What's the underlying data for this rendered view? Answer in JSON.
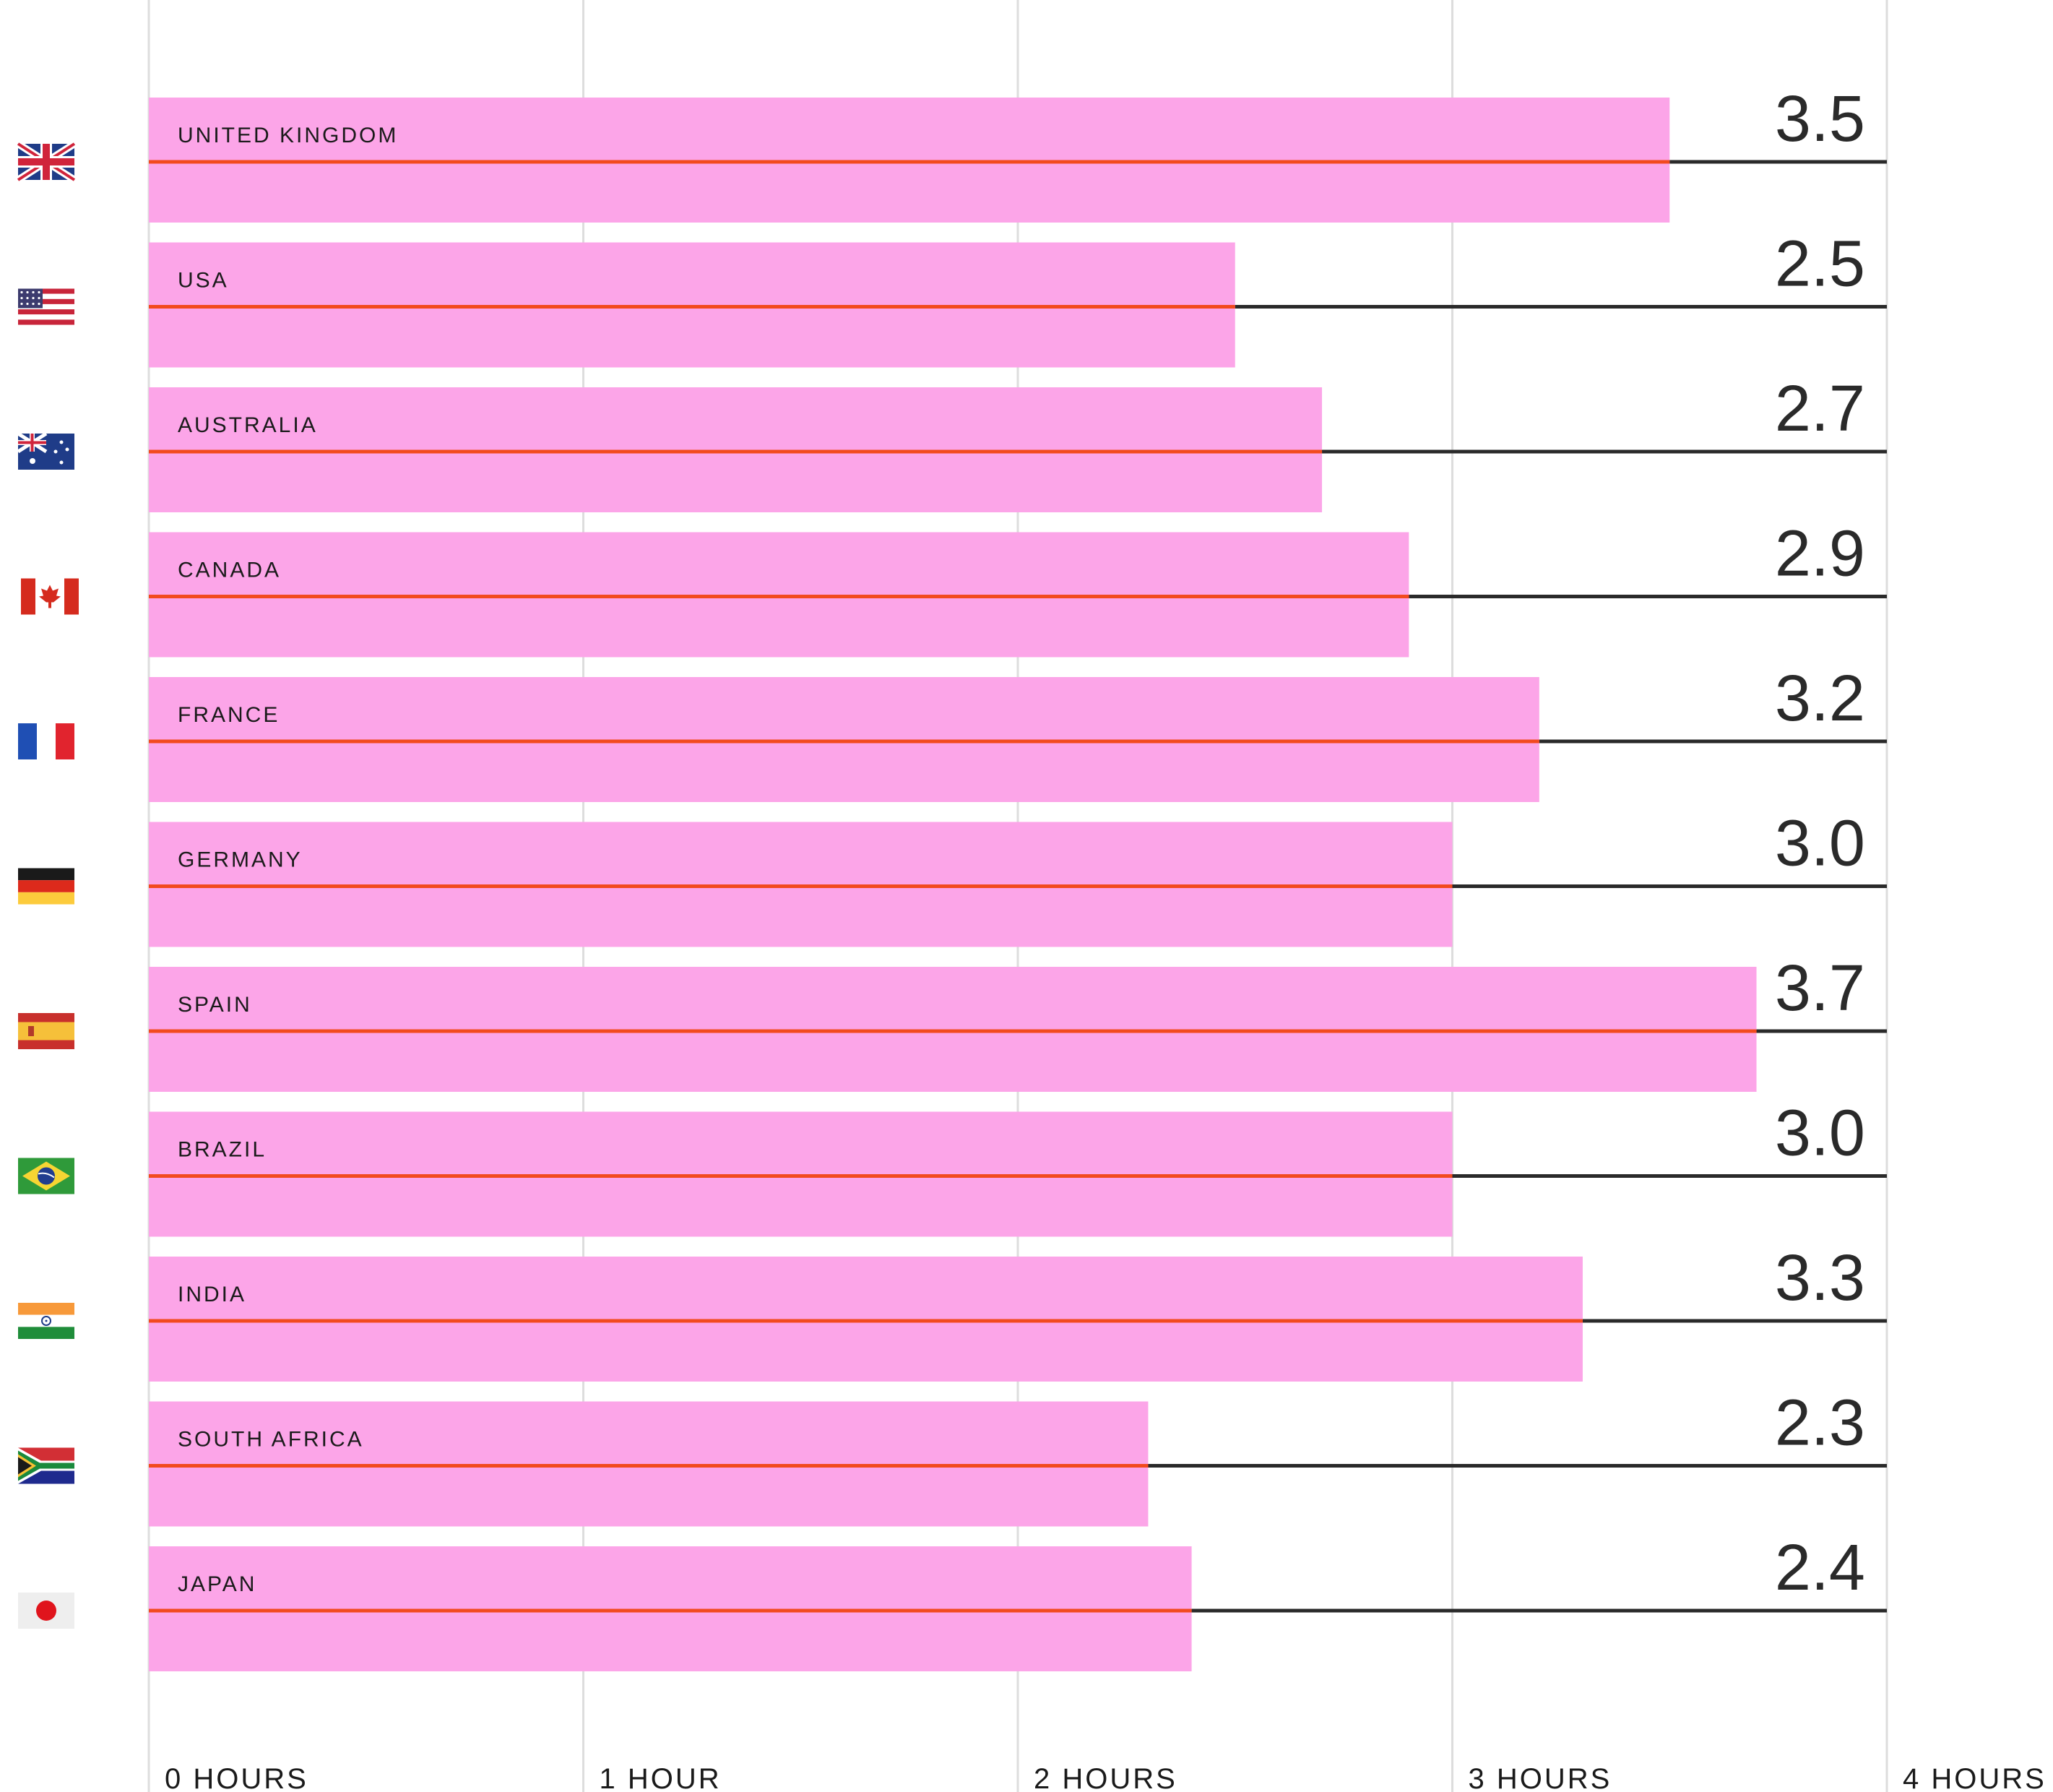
{
  "chart_data": {
    "type": "bar",
    "orientation": "horizontal",
    "categories": [
      "UNITED KINGDOM",
      "USA",
      "AUSTRALIA",
      "CANADA",
      "FRANCE",
      "GERMANY",
      "SPAIN",
      "BRAZIL",
      "INDIA",
      "SOUTH AFRICA",
      "JAPAN"
    ],
    "values": [
      3.5,
      2.5,
      2.7,
      2.9,
      3.2,
      3.0,
      3.7,
      3.0,
      3.3,
      2.3,
      2.4
    ],
    "value_labels": [
      "3.5",
      "2.5",
      "2.7",
      "2.9",
      "3.2",
      "3.0",
      "3.7",
      "3.0",
      "3.3",
      "2.3",
      "2.4"
    ],
    "flags": [
      "uk-flag-icon",
      "usa-flag-icon",
      "australia-flag-icon",
      "canada-flag-icon",
      "france-flag-icon",
      "germany-flag-icon",
      "spain-flag-icon",
      "brazil-flag-icon",
      "india-flag-icon",
      "south-africa-flag-icon",
      "japan-flag-icon"
    ],
    "xlim": [
      0,
      4
    ],
    "xticks": [
      0,
      1,
      2,
      3,
      4
    ],
    "xtick_labels": [
      "0 HOURS",
      "1 HOUR",
      "2 HOURS",
      "3 HOURS",
      "4 HOURS"
    ],
    "grid": true,
    "colors": {
      "bar": "#fca5e8",
      "bar_line": "#f24a1e",
      "track_line": "#2a2a2a",
      "grid": "#dddddd"
    }
  }
}
